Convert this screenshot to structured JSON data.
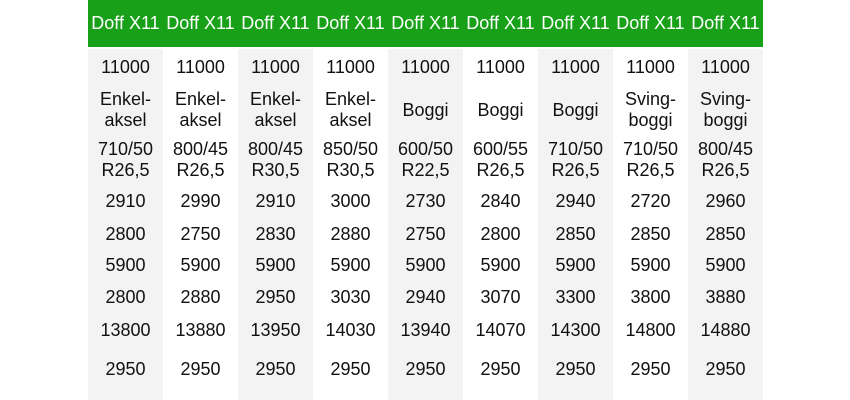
{
  "colors": {
    "header_green": "#18a018",
    "header_text": "#ffffff",
    "stripe_gray": "#f3f3f3",
    "body_text": "#111111"
  },
  "table": {
    "columns": [
      {
        "header": [
          "Doff",
          "X11"
        ],
        "capacity": "11000",
        "axle": [
          "Enkel-",
          "aksel"
        ],
        "tire": [
          "710/50",
          "R26,5"
        ],
        "values": [
          "2910",
          "2800",
          "5900",
          "2800",
          "13800",
          "2950"
        ]
      },
      {
        "header": [
          "Doff",
          "X11"
        ],
        "capacity": "11000",
        "axle": [
          "Enkel-",
          "aksel"
        ],
        "tire": [
          "800/45",
          "R26,5"
        ],
        "values": [
          "2990",
          "2750",
          "5900",
          "2880",
          "13880",
          "2950"
        ]
      },
      {
        "header": [
          "Doff",
          "X11"
        ],
        "capacity": "11000",
        "axle": [
          "Enkel-",
          "aksel"
        ],
        "tire": [
          "800/45",
          "R30,5"
        ],
        "values": [
          "2910",
          "2830",
          "5900",
          "2950",
          "13950",
          "2950"
        ]
      },
      {
        "header": [
          "Doff",
          "X11"
        ],
        "capacity": "11000",
        "axle": [
          "Enkel-",
          "aksel"
        ],
        "tire": [
          "850/50",
          "R30,5"
        ],
        "values": [
          "3000",
          "2880",
          "5900",
          "3030",
          "14030",
          "2950"
        ]
      },
      {
        "header": [
          "Doff",
          "X11"
        ],
        "capacity": "11000",
        "axle": [
          "Boggi"
        ],
        "tire": [
          "600/50",
          "R22,5"
        ],
        "values": [
          "2730",
          "2750",
          "5900",
          "2940",
          "13940",
          "2950"
        ]
      },
      {
        "header": [
          "Doff",
          "X11"
        ],
        "capacity": "11000",
        "axle": [
          "Boggi"
        ],
        "tire": [
          "600/55",
          "R26,5"
        ],
        "values": [
          "2840",
          "2800",
          "5900",
          "3070",
          "14070",
          "2950"
        ]
      },
      {
        "header": [
          "Doff",
          "X11"
        ],
        "capacity": "11000",
        "axle": [
          "Boggi"
        ],
        "tire": [
          "710/50",
          "R26,5"
        ],
        "values": [
          "2940",
          "2850",
          "5900",
          "3300",
          "14300",
          "2950"
        ]
      },
      {
        "header": [
          "Doff",
          "X11"
        ],
        "capacity": "11000",
        "axle": [
          "Sving-",
          "boggi"
        ],
        "tire": [
          "710/50",
          "R26,5"
        ],
        "values": [
          "2720",
          "2850",
          "5900",
          "3800",
          "14800",
          "2950"
        ]
      },
      {
        "header": [
          "Doff",
          "X11"
        ],
        "capacity": "11000",
        "axle": [
          "Sving-",
          "boggi"
        ],
        "tire": [
          "800/45",
          "R26,5"
        ],
        "values": [
          "2960",
          "2850",
          "5900",
          "3880",
          "14880",
          "2950"
        ]
      }
    ]
  }
}
